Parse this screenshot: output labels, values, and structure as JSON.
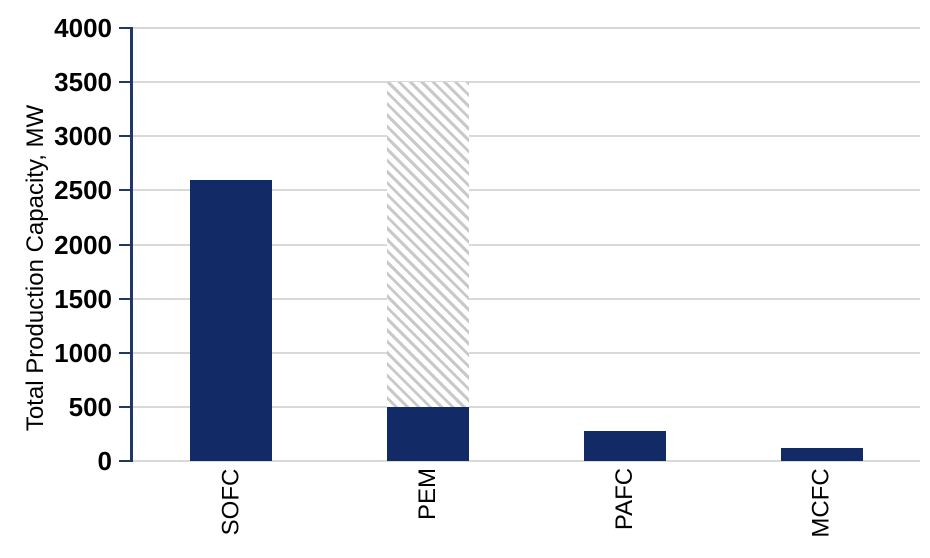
{
  "chart_data": {
    "type": "bar",
    "title": "",
    "xlabel": "",
    "ylabel": "Total Production Capacity, MW",
    "categories": [
      "SOFC",
      "PEM",
      "PAFC",
      "MCFC"
    ],
    "series": [
      {
        "name": "solid-capacity",
        "pattern": "solid",
        "values": [
          2600,
          500,
          280,
          120
        ]
      },
      {
        "name": "hatched-additional-capacity",
        "pattern": "diagonal-hatch",
        "stacked_on": "solid-capacity",
        "values": [
          0,
          3000,
          0,
          0
        ]
      }
    ],
    "stack_totals": [
      2600,
      3500,
      280,
      120
    ],
    "ylim": [
      0,
      4000
    ],
    "yticks": [
      0,
      500,
      1000,
      1500,
      2000,
      2500,
      3000,
      3500,
      4000
    ],
    "grid": "horizontal-gridlines-on",
    "legend": "none",
    "colors": {
      "bar": "#122a66",
      "axis": "#1f3864",
      "gridline": "#d9d9d9",
      "hatch_stripe": "#c9c9c9",
      "text": "#000000",
      "background": "#ffffff"
    }
  }
}
